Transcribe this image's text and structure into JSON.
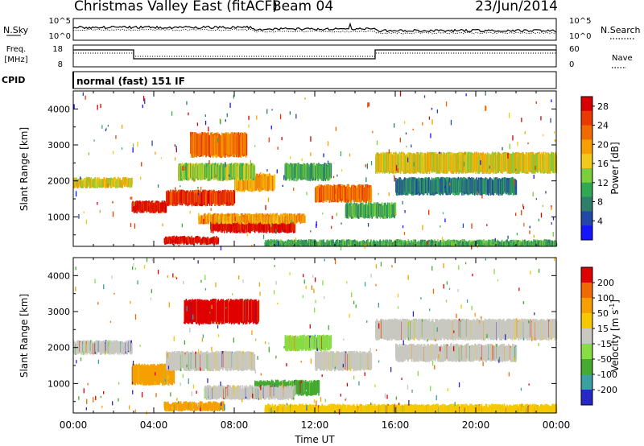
{
  "header": {
    "title": "Christmas Valley East (fitACF)",
    "beam": "Beam 04",
    "date": "23/Jun/2014"
  },
  "strip": {
    "nsky_label": "N.Sky",
    "nsearch_label": "N.Search",
    "noise_ticks_left": [
      "10^5",
      "10^0"
    ],
    "noise_ticks_right": [
      "10^5",
      "10^0"
    ],
    "freq_label": "Freq.",
    "freq_unit": "[MHz]",
    "freq_ticks": [
      "18",
      "8"
    ],
    "nave_label": "Nave",
    "nave_ticks": [
      "60",
      "0"
    ],
    "cpid_label": "CPID",
    "cpid_value": "normal (fast) 151 IF"
  },
  "chart_data": [
    {
      "type": "heatmap",
      "name": "power",
      "xlabel": "",
      "ylabel": "Slant Range [km]",
      "x_ticks": [
        "00:00",
        "04:00",
        "08:00",
        "12:00",
        "16:00",
        "20:00",
        "00:00"
      ],
      "xlim_hours": [
        0,
        24
      ],
      "y_ticks": [
        1000,
        2000,
        3000,
        4000
      ],
      "ylim": [
        180,
        4500
      ],
      "colorbar": {
        "label": "Power [dB]",
        "ticks": [
          "4",
          "8",
          "12",
          "16",
          "20",
          "24",
          "28"
        ],
        "range": [
          0,
          30
        ],
        "colors": [
          "#1414ff",
          "#2448a8",
          "#2e7e6a",
          "#31a854",
          "#7ccd3a",
          "#f2c81c",
          "#f5a000",
          "#f06a00",
          "#e83a00",
          "#d80000"
        ]
      },
      "features": [
        {
          "t0": 0.0,
          "t1": 2.9,
          "r0": 1850,
          "r1": 2050,
          "level": 5
        },
        {
          "t0": 2.9,
          "t1": 4.6,
          "r0": 1150,
          "r1": 1400,
          "level": 9
        },
        {
          "t0": 4.6,
          "t1": 8.0,
          "r0": 1350,
          "r1": 1700,
          "level": 8
        },
        {
          "t0": 8.0,
          "t1": 10.0,
          "r0": 1750,
          "r1": 2150,
          "level": 6
        },
        {
          "t0": 5.2,
          "t1": 9.0,
          "r0": 2050,
          "r1": 2450,
          "level": 4
        },
        {
          "t0": 5.8,
          "t1": 8.6,
          "r0": 2700,
          "r1": 3300,
          "level": 7
        },
        {
          "t0": 6.8,
          "t1": 11.0,
          "r0": 600,
          "r1": 850,
          "level": 9
        },
        {
          "t0": 6.2,
          "t1": 11.5,
          "r0": 850,
          "r1": 1050,
          "level": 6
        },
        {
          "t0": 4.5,
          "t1": 7.2,
          "r0": 280,
          "r1": 420,
          "level": 9
        },
        {
          "t0": 10.5,
          "t1": 12.8,
          "r0": 2050,
          "r1": 2450,
          "level": 3
        },
        {
          "t0": 12.0,
          "t1": 14.8,
          "r0": 1450,
          "r1": 1850,
          "level": 7
        },
        {
          "t0": 13.5,
          "t1": 16.0,
          "r0": 1000,
          "r1": 1350,
          "level": 3
        },
        {
          "t0": 15.0,
          "t1": 24.0,
          "r0": 2250,
          "r1": 2750,
          "level": 5
        },
        {
          "t0": 16.0,
          "t1": 22.0,
          "r0": 1650,
          "r1": 2050,
          "level": 2
        },
        {
          "t0": 9.5,
          "t1": 24.0,
          "r0": 180,
          "r1": 320,
          "level": 3
        }
      ]
    },
    {
      "type": "heatmap",
      "name": "velocity",
      "xlabel": "Time UT",
      "ylabel": "Slant Range [km]",
      "x_ticks": [
        "00:00",
        "04:00",
        "08:00",
        "12:00",
        "16:00",
        "20:00",
        "00:00"
      ],
      "xlim_hours": [
        0,
        24
      ],
      "y_ticks": [
        1000,
        2000,
        3000,
        4000
      ],
      "ylim": [
        180,
        4500
      ],
      "colorbar": {
        "label": "Velocity [m s^-1]",
        "label_main": "Velocity [m s",
        "label_exp": "-1",
        "label_tail": "]",
        "ticks": [
          "200",
          "100",
          "50",
          "15",
          "-15",
          "-50",
          "-100",
          "-200"
        ],
        "colors": [
          "#2828c8",
          "#3aa0a0",
          "#44aa30",
          "#88dd44",
          "#c8c8c0",
          "#f5c800",
          "#f5a000",
          "#f06a00",
          "#e00000"
        ]
      },
      "features": [
        {
          "t0": 0.0,
          "t1": 2.9,
          "r0": 1850,
          "r1": 2150,
          "color": "#c8c8c0"
        },
        {
          "t0": 2.9,
          "t1": 5.0,
          "r0": 1000,
          "r1": 1500,
          "color": "#f5a000"
        },
        {
          "t0": 4.6,
          "t1": 9.0,
          "r0": 1400,
          "r1": 1850,
          "color": "#c8c8c0"
        },
        {
          "t0": 5.5,
          "t1": 9.2,
          "r0": 2700,
          "r1": 3300,
          "color": "#e00000"
        },
        {
          "t0": 9.0,
          "t1": 12.2,
          "r0": 700,
          "r1": 1050,
          "color": "#44aa30"
        },
        {
          "t0": 6.5,
          "t1": 11.0,
          "r0": 600,
          "r1": 900,
          "color": "#c8c8c0"
        },
        {
          "t0": 4.5,
          "t1": 7.5,
          "r0": 280,
          "r1": 450,
          "color": "#f5a000"
        },
        {
          "t0": 10.5,
          "t1": 12.8,
          "r0": 1950,
          "r1": 2300,
          "color": "#88dd44"
        },
        {
          "t0": 12.0,
          "t1": 14.8,
          "r0": 1400,
          "r1": 1850,
          "color": "#c8c8c0"
        },
        {
          "t0": 15.0,
          "t1": 24.0,
          "r0": 2250,
          "r1": 2750,
          "color": "#c8c8c0"
        },
        {
          "t0": 16.0,
          "t1": 22.0,
          "r0": 1650,
          "r1": 2050,
          "color": "#c8c8c0"
        },
        {
          "t0": 9.5,
          "t1": 24.0,
          "r0": 180,
          "r1": 380,
          "color": "#f5c800"
        }
      ]
    }
  ]
}
